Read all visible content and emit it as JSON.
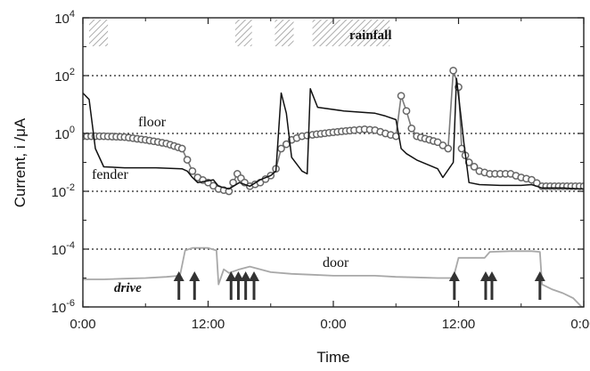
{
  "chart_data": {
    "type": "line",
    "xlabel": "Time",
    "ylabel": "Current, i /μA",
    "x_ticks": [
      "0:00",
      "12:00",
      "0:00",
      "12:00",
      "0:00"
    ],
    "x_tick_hours": [
      0,
      12,
      24,
      36,
      48
    ],
    "xlim_hours": [
      0,
      48
    ],
    "y_scale": "log",
    "ylim_exponents": [
      -6,
      4
    ],
    "y_tick_exponents": [
      -6,
      -4,
      -2,
      0,
      2,
      4
    ],
    "y_tick_base": "10",
    "y_tick_sup": [
      "-6",
      "-4",
      "-2",
      "0",
      "2",
      "4"
    ],
    "grid": "dotted horizontal at each y tick",
    "annotations": {
      "rainfall": "rainfall",
      "floor": "floor",
      "fender": "fender",
      "door": "door",
      "drive": "drive"
    },
    "rainfall_periods_hours": [
      [
        0.6,
        2.4
      ],
      [
        14.6,
        16.2
      ],
      [
        18.4,
        20.2
      ],
      [
        22.0,
        29.4
      ]
    ],
    "drive_event_hours": [
      9.2,
      10.7,
      14.2,
      14.9,
      15.6,
      16.4,
      35.6,
      38.6,
      39.2,
      43.8
    ],
    "series": [
      {
        "name": "floor",
        "style": "gray line with open circle markers",
        "points": [
          [
            0,
            0.8
          ],
          [
            2,
            0.8
          ],
          [
            4,
            0.75
          ],
          [
            6,
            0.6
          ],
          [
            8,
            0.45
          ],
          [
            9.5,
            0.3
          ],
          [
            10.5,
            0.05
          ],
          [
            11,
            0.03
          ],
          [
            12,
            0.02
          ],
          [
            13,
            0.012
          ],
          [
            14,
            0.01
          ],
          [
            14.8,
            0.04
          ],
          [
            15.5,
            0.02
          ],
          [
            16,
            0.015
          ],
          [
            17,
            0.02
          ],
          [
            18,
            0.035
          ],
          [
            18.5,
            0.06
          ],
          [
            19,
            0.3
          ],
          [
            20,
            0.6
          ],
          [
            21,
            0.8
          ],
          [
            22,
            0.9
          ],
          [
            24,
            1.1
          ],
          [
            26,
            1.3
          ],
          [
            27,
            1.4
          ],
          [
            28,
            1.3
          ],
          [
            29,
            1.0
          ],
          [
            30,
            0.8
          ],
          [
            30.5,
            20
          ],
          [
            31,
            6
          ],
          [
            31.5,
            1.5
          ],
          [
            32,
            0.8
          ],
          [
            34,
            0.5
          ],
          [
            35,
            0.3
          ],
          [
            35.5,
            150
          ],
          [
            36,
            40
          ],
          [
            36.3,
            0.3
          ],
          [
            37,
            0.1
          ],
          [
            38,
            0.05
          ],
          [
            39,
            0.04
          ],
          [
            40,
            0.04
          ],
          [
            41,
            0.04
          ],
          [
            42,
            0.03
          ],
          [
            43,
            0.025
          ],
          [
            44,
            0.015
          ],
          [
            46,
            0.015
          ],
          [
            48,
            0.015
          ]
        ]
      },
      {
        "name": "fender",
        "style": "black line",
        "points": [
          [
            0,
            25
          ],
          [
            0.6,
            15
          ],
          [
            1.2,
            0.3
          ],
          [
            2,
            0.07
          ],
          [
            4,
            0.065
          ],
          [
            7,
            0.065
          ],
          [
            9.5,
            0.06
          ],
          [
            10,
            0.05
          ],
          [
            10.5,
            0.03
          ],
          [
            11,
            0.02
          ],
          [
            12.5,
            0.025
          ],
          [
            13,
            0.015
          ],
          [
            14,
            0.012
          ],
          [
            15,
            0.02
          ],
          [
            16,
            0.015
          ],
          [
            17,
            0.025
          ],
          [
            18,
            0.035
          ],
          [
            18.5,
            0.05
          ],
          [
            19,
            25
          ],
          [
            19.5,
            5
          ],
          [
            20,
            0.15
          ],
          [
            21,
            0.05
          ],
          [
            21.5,
            0.04
          ],
          [
            21.8,
            35
          ],
          [
            22.5,
            8
          ],
          [
            25,
            6
          ],
          [
            28,
            5
          ],
          [
            29,
            4
          ],
          [
            30,
            3
          ],
          [
            30.5,
            0.3
          ],
          [
            31,
            0.2
          ],
          [
            32,
            0.12
          ],
          [
            34,
            0.06
          ],
          [
            34.5,
            0.03
          ],
          [
            35.5,
            0.1
          ],
          [
            35.8,
            80
          ],
          [
            36.2,
            5
          ],
          [
            36.5,
            0.5
          ],
          [
            37,
            0.02
          ],
          [
            38,
            0.017
          ],
          [
            40,
            0.016
          ],
          [
            42,
            0.016
          ],
          [
            43,
            0.017
          ],
          [
            44,
            0.013
          ],
          [
            46,
            0.013
          ],
          [
            48,
            0.012
          ]
        ]
      },
      {
        "name": "door",
        "style": "light gray line",
        "points": [
          [
            0,
            9e-06
          ],
          [
            2,
            9e-06
          ],
          [
            4,
            9.5e-06
          ],
          [
            6,
            1e-05
          ],
          [
            8,
            1.1e-05
          ],
          [
            9.3,
            1.2e-05
          ],
          [
            9.8,
            9e-05
          ],
          [
            10.5,
            0.00011
          ],
          [
            12,
            0.00011
          ],
          [
            12.8,
            9e-05
          ],
          [
            13,
            6e-06
          ],
          [
            13.5,
            2e-05
          ],
          [
            14,
            1.5e-05
          ],
          [
            15,
            2e-05
          ],
          [
            16,
            2.5e-05
          ],
          [
            17,
            2e-05
          ],
          [
            18,
            1.6e-05
          ],
          [
            20,
            1.4e-05
          ],
          [
            22,
            1.3e-05
          ],
          [
            24,
            1.2e-05
          ],
          [
            26,
            1.2e-05
          ],
          [
            28,
            1.2e-05
          ],
          [
            30,
            1.1e-05
          ],
          [
            32,
            1.05e-05
          ],
          [
            34,
            1e-05
          ],
          [
            35.5,
            1e-05
          ],
          [
            36,
            5e-05
          ],
          [
            37,
            5e-05
          ],
          [
            38.5,
            5e-05
          ],
          [
            39,
            8e-05
          ],
          [
            41,
            8.5e-05
          ],
          [
            43,
            8.5e-05
          ],
          [
            43.8,
            8e-05
          ],
          [
            44,
            6e-06
          ],
          [
            45,
            4e-06
          ],
          [
            46,
            3e-06
          ],
          [
            47,
            2e-06
          ],
          [
            47.8,
            1e-06
          ]
        ]
      }
    ]
  }
}
